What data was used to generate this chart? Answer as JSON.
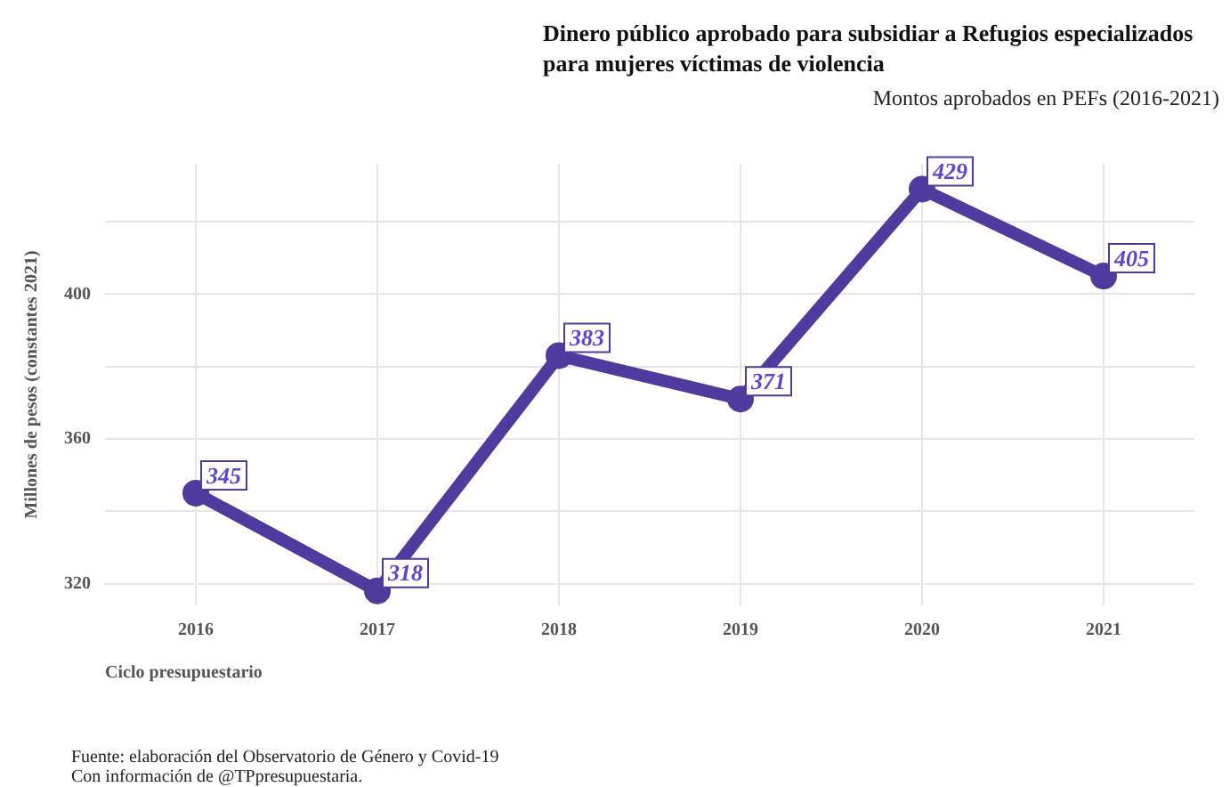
{
  "chart_data": {
    "type": "line",
    "title": "Dinero público aprobado para subsidiar a Refugios especializados para mujeres  víctimas de violencia",
    "subtitle": "Montos aprobados en PEFs (2016-2021)",
    "xlabel": "Ciclo presupuestario",
    "ylabel": "Millones de pesos (constantes 2021)",
    "categories": [
      "2016",
      "2017",
      "2018",
      "2019",
      "2020",
      "2021"
    ],
    "series": [
      {
        "color": "#4f3a9e",
        "values": [
          345,
          318,
          383,
          371,
          429,
          405
        ]
      }
    ],
    "ylim": [
      314,
      436
    ],
    "yticks": [
      320,
      {
        "value": 340,
        "label": null
      },
      360,
      {
        "value": 380,
        "label": null
      },
      400,
      {
        "value": 420,
        "label": null
      }
    ],
    "grid": true,
    "legend": false,
    "marker": "circle",
    "line_style": "solid",
    "data_labels": true,
    "annotations": [
      "Fuente: elaboración del Observatorio de Género y Covid-19",
      "Con información de @TPpresupuestaria."
    ]
  }
}
